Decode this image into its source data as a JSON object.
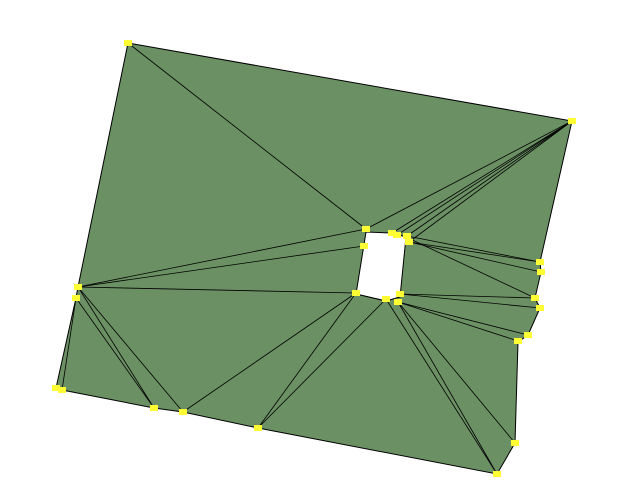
{
  "colors": {
    "background": "#ffffff",
    "fill": "#6b9064",
    "edge": "#000000",
    "vertex": "#ffff33",
    "hole": "#ffffff"
  },
  "mesh": {
    "vertex_count": 34,
    "hole_count": 1
  }
}
